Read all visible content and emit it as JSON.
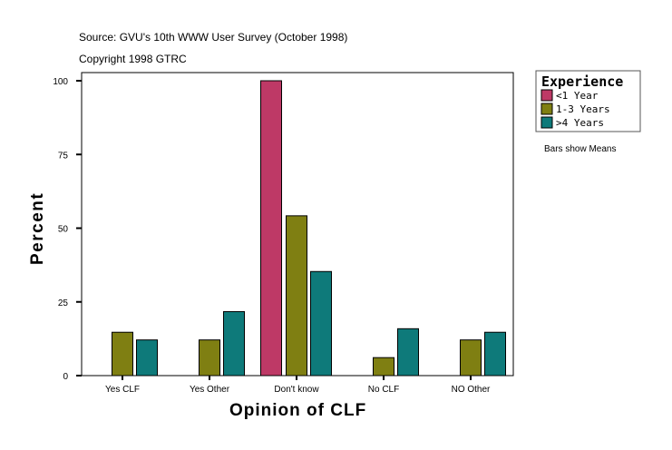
{
  "source_line": "Source: GVU's 10th WWW User Survey (October 1998)",
  "copyright_line": "Copyright 1998 GTRC",
  "note": "Bars show Means",
  "chart_data": {
    "type": "bar",
    "xlabel": "Opinion of CLF",
    "ylabel": "Percent",
    "ylim": [
      0,
      100
    ],
    "yticks": [
      0,
      25,
      50,
      75,
      100
    ],
    "categories": [
      "Yes CLF",
      "Yes Other",
      "Don't know",
      "No CLF",
      "NO Other"
    ],
    "legend": {
      "title": "Experience",
      "placement": "right"
    },
    "series": [
      {
        "name": "<1 Year",
        "color": "#be3966",
        "values": [
          null,
          null,
          100,
          null,
          null
        ]
      },
      {
        "name": "1-3 Years",
        "color": "#7f7f12",
        "values": [
          14.7,
          12.1,
          54.2,
          6.1,
          12.1
        ]
      },
      {
        "name": ">4 Years",
        "color": "#0e7a7a",
        "values": [
          12.1,
          21.7,
          35.3,
          15.9,
          14.7
        ]
      }
    ],
    "grid": false
  }
}
